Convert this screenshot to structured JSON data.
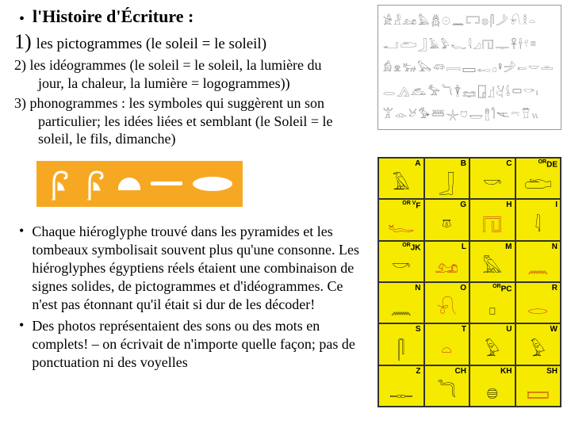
{
  "title": "l'Histoire d'Écriture :",
  "item1_num": "1)",
  "item1_text": "les pictogrammes (le soleil = le soleil)",
  "item2_lead": "2) les idéogrammes (le soleil = le soleil, la lumière du",
  "item2_cont": "jour, la chaleur, la lumière = logogrammes))",
  "item3_lead": "3) phonogrammes : les symboles qui suggèrent un son",
  "item3_cont1": "particulier; les idées liées et semblant (le Soleil = le",
  "item3_cont2": "soleil, le fils, dimanche)",
  "bullet_a": "Chaque hiéroglyphe trouvé dans les pyramides et les tombeaux symbolisait souvent plus qu'une consonne. Les hiéroglyphes égyptiens réels étaient une combinaison de signes solides, de pictogrammes et d'idéogrammes. Ce n'est pas étonnant qu'il était si dur de les décoder!",
  "bullet_b": "Des photos représentaient des sons ou des mots en complets! – on écrivait de n'importe quelle façon; pas de ponctuation ni des voyelles",
  "glyph_rows": [
    "𓀀𓁐𓃭𓅓𓆣𓇳𓈖𓉐𓊖𓋴𓌳𓍯𓎛𓏏",
    "𓂝𓂧𓃀𓄿𓅱𓆑𓇋𓈎𓉔𓊃𓋹𓌂𓍢𓎼",
    "𓀁𓁷𓃒𓅂𓆛𓇯𓈙𓉻𓊪𓋩𓌶𓍿𓎟𓏛",
    "𓂋𓂻𓃹𓅡𓆓𓇉𓈐𓉗𓊨𓋔𓌰𓍷𓎡𓏤",
    "𓀠𓁹𓃾𓅜𓆷𓇼𓈞𓉿𓊽𓋿𓌻𓍼𓎯𓏭"
  ],
  "grid": [
    [
      {
        "l": "A",
        "g": "𓄿"
      },
      {
        "l": "B",
        "g": "𓃀"
      },
      {
        "l": "C",
        "g": "𓎡"
      },
      {
        "l": "DE",
        "sup": "OR",
        "g": "𓂧"
      }
    ],
    [
      {
        "l": "F",
        "sup": "OR V",
        "g": "𓆑",
        "c": "red"
      },
      {
        "l": "G",
        "g": "𓎼"
      },
      {
        "l": "H",
        "g": "𓉔",
        "c": "red"
      },
      {
        "l": "I",
        "g": "𓇋"
      }
    ],
    [
      {
        "l": "JK",
        "sup": "OR",
        "g": "𓎡"
      },
      {
        "l": "L",
        "g": "𓃭",
        "c": "red"
      },
      {
        "l": "M",
        "g": "𓅓"
      },
      {
        "l": "N",
        "g": "𓈖",
        "c": "red"
      }
    ],
    [
      {
        "l": "N",
        "g": "𓈖"
      },
      {
        "l": "O",
        "g": "𓍯",
        "c": "red"
      },
      {
        "l": "PC",
        "sup": "OR",
        "g": "𓊪"
      },
      {
        "l": "R",
        "g": "𓂋",
        "c": "red"
      }
    ],
    [
      {
        "l": "S",
        "g": "𓋴"
      },
      {
        "l": "T",
        "g": "𓏏",
        "c": "red"
      },
      {
        "l": "U",
        "g": "𓅱"
      },
      {
        "l": "W",
        "g": "𓅱"
      }
    ],
    [
      {
        "l": "Z",
        "g": "𓊃"
      },
      {
        "l": "CH",
        "g": "𓆓"
      },
      {
        "l": "KH",
        "g": "𓐍"
      },
      {
        "l": "SH",
        "g": "𓈙",
        "c": "red"
      }
    ]
  ],
  "colors": {
    "orange": "#f7a823",
    "yellow": "#f5ea00",
    "red": "#c01818"
  }
}
